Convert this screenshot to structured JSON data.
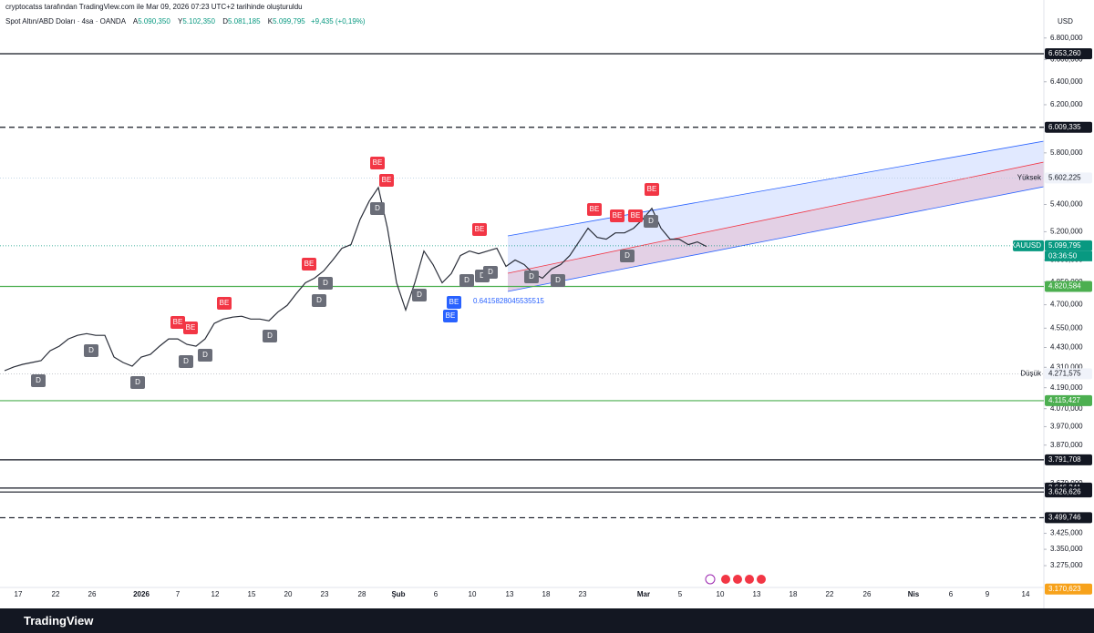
{
  "header": {
    "credit": "cryptocatss tarafından TradingView.com ile Mar 09, 2026 07:23 UTC+2 tarihinde oluşturuldu",
    "symbol": "Spot Altın/ABD Doları · 4sa · OANDA",
    "ohlc": [
      {
        "label": "A",
        "value": "5.090,350"
      },
      {
        "label": "Y",
        "value": "5.102,350"
      },
      {
        "label": "D",
        "value": "5.081,185"
      },
      {
        "label": "K",
        "value": "5.099,795"
      }
    ],
    "change": "+9,435 (+0,19%)"
  },
  "footer": {
    "brand": "TradingView"
  },
  "chart_data": {
    "type": "line",
    "unit": "USD",
    "log_scale": true,
    "grid": false,
    "color": "#2a2e39",
    "ylim": [
      3118,
      7033
    ],
    "yticks": [
      {
        "value": 6800,
        "label": "6.800,000"
      },
      {
        "value": 6600,
        "label": "6.600,000"
      },
      {
        "value": 6400,
        "label": "6.400,000"
      },
      {
        "value": 6200,
        "label": "6.200,000"
      },
      {
        "value": 5800,
        "label": "5.800,000"
      },
      {
        "value": 5400,
        "label": "5.400,000"
      },
      {
        "value": 5200,
        "label": "5.200,000"
      },
      {
        "value": 5000,
        "label": "5.000,000"
      },
      {
        "value": 4850,
        "label": "4.850,000"
      },
      {
        "value": 4700,
        "label": "4.700,000"
      },
      {
        "value": 4550,
        "label": "4.550,000"
      },
      {
        "value": 4430,
        "label": "4.430,000"
      },
      {
        "value": 4310,
        "label": "4.310,000"
      },
      {
        "value": 4190,
        "label": "4.190,000"
      },
      {
        "value": 4070,
        "label": "4.070,000"
      },
      {
        "value": 3970,
        "label": "3.970,000"
      },
      {
        "value": 3870,
        "label": "3.870,000"
      },
      {
        "value": 3670,
        "label": "3.670,000"
      },
      {
        "value": 3425,
        "label": "3.425,000"
      },
      {
        "value": 3350,
        "label": "3.350,000"
      },
      {
        "value": 3275,
        "label": "3.275,000"
      }
    ],
    "x_labels": [
      "17",
      "22",
      "26",
      "2026",
      "7",
      "12",
      "15",
      "20",
      "23",
      "28",
      "Şub",
      "6",
      "10",
      "13",
      "18",
      "23",
      "Mar",
      "5",
      "10",
      "13",
      "18",
      "22",
      "26",
      "Nis",
      "6",
      "9",
      "14"
    ],
    "values": [
      4290,
      4312,
      4328,
      4339,
      4350,
      4410,
      4438,
      4483,
      4505,
      4516,
      4505,
      4505,
      4372,
      4339,
      4317,
      4372,
      4388,
      4438,
      4483,
      4483,
      4449,
      4438,
      4483,
      4580,
      4608,
      4620,
      4626,
      4608,
      4608,
      4597,
      4654,
      4696,
      4773,
      4845,
      4876,
      4925,
      5000,
      5082,
      5108,
      5290,
      5425,
      5528,
      5225,
      4845,
      4666,
      4845,
      5063,
      4969,
      4845,
      4907,
      5031,
      5063,
      5044,
      5063,
      5082,
      4956,
      5000,
      4969,
      4907,
      4876,
      4938,
      4969,
      5031,
      5127,
      5225,
      5160,
      5147,
      5192,
      5192,
      5225,
      5290,
      5371,
      5225,
      5147,
      5147,
      5108,
      5127,
      5095
    ],
    "levels": [
      {
        "value": 6653.26,
        "label": "6.653,260",
        "color": "#131722",
        "style": "solid"
      },
      {
        "value": 6009.335,
        "label": "6.009,335",
        "color": "#131722",
        "style": "dashed"
      },
      {
        "value": 5602.225,
        "label": "5.602,225",
        "name": "Yüksek",
        "color": "#b2cbe0",
        "style": "dotted"
      },
      {
        "value": 5099.795,
        "label": "5.099,795",
        "name": "XAUUSD",
        "sublabel": "03:36:50",
        "color": "#089981",
        "style": "dotted"
      },
      {
        "value": 4820.584,
        "label": "4.820,584",
        "color": "#4caf50",
        "style": "solid"
      },
      {
        "value": 4271.575,
        "label": "4.271,575",
        "name": "Düşük",
        "color": "#b2b5be",
        "style": "dotted"
      },
      {
        "value": 4115.427,
        "label": "4.115,427",
        "color": "#4caf50",
        "style": "solid"
      },
      {
        "value": 3791.708,
        "label": "3.791,708",
        "color": "#131722",
        "style": "solid"
      },
      {
        "value": 3646.241,
        "label": "3.646,241",
        "color": "#131722",
        "style": "solid"
      },
      {
        "value": 3626.626,
        "label": "3.626,626",
        "color": "#131722",
        "style": "solid"
      },
      {
        "value": 3499.746,
        "label": "3.499,746",
        "color": "#131722",
        "style": "dashed"
      },
      {
        "value": 3170.623,
        "label": "3.170,623",
        "color": "#f7a21b",
        "style": "none"
      }
    ],
    "annotation": "0.6415828045535515",
    "signal_labels": {
      "sell": "BE",
      "buy": "D"
    }
  }
}
